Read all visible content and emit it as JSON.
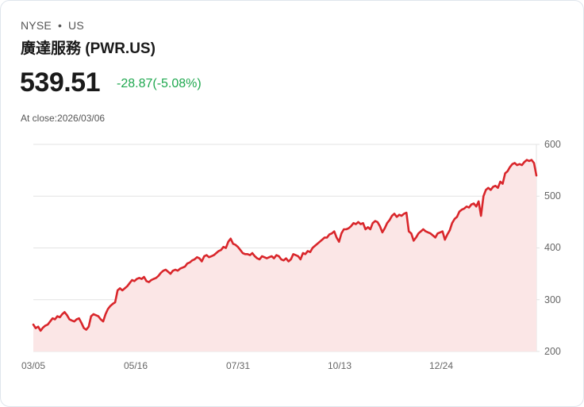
{
  "header": {
    "exchange": "NYSE",
    "separator": "•",
    "market": "US",
    "name": "廣達服務 (PWR.US)",
    "price": "539.51",
    "change": "-28.87(-5.08%)",
    "change_color": "#1fa84f",
    "close_label": "At close:2026/03/06"
  },
  "colors": {
    "line": "#d9262b",
    "fill": "#fbe6e6",
    "grid": "#e3e3e3"
  },
  "chart_data": {
    "type": "area",
    "title": "廣達服務 (PWR.US)",
    "xlabel": "",
    "ylabel": "",
    "ylim": [
      200,
      600
    ],
    "yticks": [
      600,
      500,
      400,
      300,
      200
    ],
    "xticks": [
      "03/05",
      "05/16",
      "07/31",
      "10/13",
      "12/24"
    ],
    "grid": true,
    "values": [
      252,
      245,
      248,
      240,
      246,
      250,
      252,
      258,
      264,
      262,
      268,
      266,
      272,
      276,
      270,
      262,
      260,
      258,
      262,
      264,
      255,
      245,
      242,
      248,
      268,
      272,
      270,
      268,
      262,
      258,
      272,
      282,
      288,
      292,
      295,
      318,
      322,
      318,
      322,
      326,
      332,
      338,
      336,
      340,
      342,
      340,
      344,
      336,
      334,
      338,
      340,
      342,
      346,
      352,
      356,
      358,
      354,
      350,
      356,
      358,
      356,
      360,
      362,
      364,
      370,
      372,
      376,
      378,
      382,
      380,
      374,
      384,
      386,
      382,
      384,
      386,
      390,
      394,
      396,
      402,
      400,
      412,
      418,
      408,
      406,
      402,
      396,
      390,
      388,
      388,
      386,
      390,
      384,
      380,
      378,
      384,
      382,
      380,
      382,
      384,
      380,
      386,
      384,
      378,
      376,
      380,
      374,
      378,
      388,
      386,
      384,
      378,
      390,
      388,
      394,
      392,
      400,
      404,
      408,
      412,
      416,
      420,
      420,
      426,
      428,
      432,
      420,
      412,
      428,
      436,
      436,
      438,
      442,
      448,
      446,
      450,
      446,
      448,
      436,
      440,
      436,
      448,
      452,
      450,
      442,
      430,
      438,
      448,
      454,
      462,
      466,
      460,
      464,
      462,
      466,
      468,
      432,
      428,
      414,
      420,
      428,
      432,
      436,
      432,
      430,
      428,
      424,
      420,
      428,
      430,
      432,
      416,
      426,
      434,
      448,
      456,
      460,
      470,
      474,
      476,
      480,
      478,
      484,
      486,
      480,
      490,
      462,
      500,
      512,
      516,
      512,
      518,
      520,
      516,
      528,
      524,
      544,
      548,
      556,
      562,
      564,
      560,
      562,
      560,
      566,
      570,
      568,
      570,
      564,
      540
    ]
  },
  "axis": {
    "y": [
      "600",
      "500",
      "400",
      "300",
      "200"
    ],
    "x": [
      "03/05",
      "05/16",
      "07/31",
      "10/13",
      "12/24"
    ]
  }
}
